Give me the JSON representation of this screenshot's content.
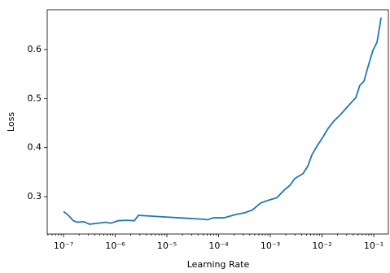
{
  "chart_data": {
    "type": "line",
    "xlabel": "Learning Rate",
    "ylabel": "Loss",
    "xscale": "log",
    "grid": false,
    "xlim": [
      4.84e-08,
      0.192
    ],
    "ylim": [
      0.224,
      0.681
    ],
    "xticks": [
      {
        "value": 1e-07,
        "label": "10⁻⁷"
      },
      {
        "value": 1e-06,
        "label": "10⁻⁶"
      },
      {
        "value": 1e-05,
        "label": "10⁻⁵"
      },
      {
        "value": 0.0001,
        "label": "10⁻⁴"
      },
      {
        "value": 0.001,
        "label": "10⁻³"
      },
      {
        "value": 0.01,
        "label": "10⁻²"
      },
      {
        "value": 0.1,
        "label": "10⁻¹"
      }
    ],
    "yticks": [
      0.3,
      0.4,
      0.5,
      0.6
    ],
    "x": [
      1e-07,
      1.24e-07,
      1.55e-07,
      1.85e-07,
      2.48e-07,
      3.19e-07,
      4.59e-07,
      6.59e-07,
      8.19e-07,
      1.14e-06,
      1.63e-06,
      2.34e-06,
      2.81e-06,
      4.04e-06,
      5.8e-06,
      8.34e-06,
      1.2e-05,
      1.72e-05,
      2.48e-05,
      3.56e-05,
      5.11e-05,
      6.13e-05,
      7.9e-05,
      0.000127,
      0.000218,
      0.000313,
      0.000451,
      0.000647,
      0.00093,
      0.00134,
      0.00192,
      0.00239,
      0.00297,
      0.00427,
      0.0053,
      0.00635,
      0.00819,
      0.0102,
      0.0131,
      0.0169,
      0.0226,
      0.0292,
      0.0376,
      0.0451,
      0.054,
      0.0647,
      0.0776,
      0.0964,
      0.116,
      0.139
    ],
    "series": [
      {
        "color": "#1f77b4",
        "values": [
          0.27,
          0.262,
          0.251,
          0.248,
          0.249,
          0.244,
          0.246,
          0.248,
          0.246,
          0.251,
          0.252,
          0.251,
          0.262,
          0.261,
          0.26,
          0.259,
          0.258,
          0.257,
          0.256,
          0.255,
          0.254,
          0.253,
          0.257,
          0.257,
          0.264,
          0.267,
          0.273,
          0.287,
          0.293,
          0.298,
          0.315,
          0.323,
          0.337,
          0.347,
          0.362,
          0.385,
          0.405,
          0.42,
          0.439,
          0.454,
          0.467,
          0.48,
          0.493,
          0.502,
          0.527,
          0.535,
          0.565,
          0.598,
          0.615,
          0.665
        ]
      }
    ]
  }
}
